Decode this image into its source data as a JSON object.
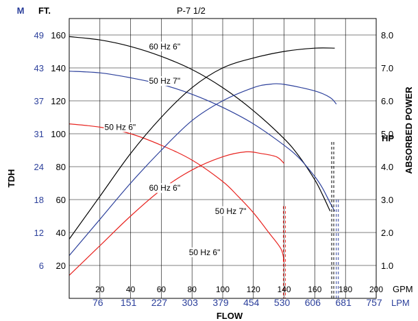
{
  "chart_data": {
    "type": "line",
    "title": "P-7 1/2",
    "xlabel": "FLOW",
    "ylabel": "TDH",
    "y2label": "ABSORBED POWER",
    "xlim": [
      0,
      200
    ],
    "ylim": [
      0,
      170
    ],
    "hp_lim": [
      0,
      8.5
    ],
    "grid": true,
    "colors": {
      "60 Hz": "#000000",
      "50 Hz 7\"": "#2b3f9b",
      "50 Hz 6\"": "#e8231f",
      "m_scale": "#2b3f9b",
      "lpm_scale": "#2b3f9b"
    },
    "units": {
      "m": "M",
      "ft": "FT.",
      "hp": "HP",
      "gpm": "GPM",
      "lpm": "LPM"
    },
    "x_ticks_gpm": [
      "20",
      "40",
      "60",
      "80",
      "100",
      "120",
      "140",
      "160",
      "180",
      "200"
    ],
    "x_ticks_lpm": [
      "76",
      "151",
      "227",
      "303",
      "379",
      "454",
      "530",
      "606",
      "681",
      "757"
    ],
    "y_ticks_ft": [
      "20",
      "40",
      "60",
      "80",
      "100",
      "120",
      "140",
      "160"
    ],
    "y_ticks_m": [
      "6",
      "12",
      "18",
      "24",
      "31",
      "37",
      "43",
      "49"
    ],
    "y_ticks_hp": [
      "1.0",
      "2.0",
      "3.0",
      "4.0",
      "5.0",
      "6.0",
      "7.0",
      "8.0"
    ],
    "head_series": [
      {
        "name": "60 Hz 6\"",
        "color": "#000000",
        "x": [
          0,
          20,
          40,
          60,
          80,
          100,
          120,
          140,
          150,
          160,
          165,
          170
        ],
        "y": [
          159,
          157,
          153,
          147,
          139,
          128,
          114,
          97,
          86,
          72,
          63,
          53
        ]
      },
      {
        "name": "50 Hz 7\"",
        "color": "#2b3f9b",
        "x": [
          0,
          20,
          40,
          60,
          80,
          100,
          120,
          140,
          150,
          160,
          165,
          170,
          173
        ],
        "y": [
          138,
          137,
          134,
          130,
          124,
          116,
          106,
          93,
          85,
          74,
          67,
          58,
          53
        ]
      },
      {
        "name": "50 Hz 6\"",
        "color": "#e8231f",
        "x": [
          0,
          20,
          40,
          60,
          80,
          100,
          110,
          120,
          130,
          138,
          140
        ],
        "y": [
          106,
          104,
          100,
          93,
          84,
          71,
          62,
          52,
          40,
          30,
          22
        ]
      }
    ],
    "power_series": [
      {
        "name": "60 Hz 6\"",
        "color": "#000000",
        "x": [
          0,
          20,
          40,
          60,
          80,
          100,
          120,
          140,
          160,
          173
        ],
        "hp": [
          1.8,
          3.1,
          4.4,
          5.5,
          6.4,
          7.0,
          7.3,
          7.5,
          7.6,
          7.6
        ]
      },
      {
        "name": "50 Hz 7\"",
        "color": "#2b3f9b",
        "x": [
          0,
          20,
          40,
          60,
          80,
          100,
          120,
          130,
          140,
          160,
          170,
          174
        ],
        "hp": [
          1.3,
          2.4,
          3.5,
          4.5,
          5.4,
          6.0,
          6.4,
          6.5,
          6.5,
          6.3,
          6.1,
          5.9
        ]
      },
      {
        "name": "50 Hz 6\"",
        "color": "#e8231f",
        "x": [
          0,
          20,
          40,
          60,
          80,
          100,
          115,
          125,
          135,
          140
        ],
        "hp": [
          0.7,
          1.6,
          2.5,
          3.3,
          3.9,
          4.3,
          4.45,
          4.4,
          4.3,
          4.1
        ]
      }
    ],
    "annotations": [
      {
        "text": "60 Hz 6\"",
        "x": 52,
        "y": 153
      },
      {
        "text": "50 Hz 7\"",
        "x": 52,
        "y": 132
      },
      {
        "text": "50 Hz 6\"",
        "x": 23,
        "y": 104
      },
      {
        "text": "60 Hz 6\"",
        "x": 52,
        "y": 67
      },
      {
        "text": "50 Hz 7\"",
        "x": 95,
        "y": 53
      },
      {
        "text": "50 Hz 6\"",
        "x": 78,
        "y": 28
      }
    ],
    "end_markers": [
      {
        "color": "#e8231f",
        "x": 139.5,
        "y_top": 56
      },
      {
        "color": "#000000",
        "x": 171,
        "y_top": 95
      },
      {
        "color": "#2b3f9b",
        "x": 174,
        "y_top": 60
      }
    ]
  }
}
